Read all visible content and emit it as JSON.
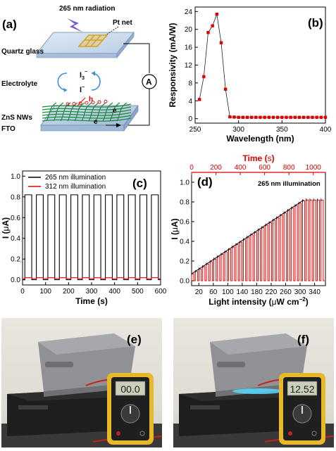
{
  "panel_a": {
    "label": "(a)",
    "radiation": "265 nm radiation",
    "pt_net": "Pt net",
    "quartz": "Quartz glass",
    "electrolyte": "Electrolyte",
    "i3": "I",
    "i3_sub": "3",
    "i3_sup": "−",
    "iminus": "I",
    "iminus_sup": "−",
    "hole": "h",
    "electron": "e",
    "nws": "ZnS NWs",
    "fto": "FTO",
    "meter": "A",
    "ebottom": "e"
  },
  "panel_e": {
    "label": "(e)",
    "display": "00.0"
  },
  "panel_f": {
    "label": "(f)",
    "display": "12.52"
  },
  "chart_data": [
    {
      "id": "b",
      "label": "(b)",
      "type": "scatter",
      "xlabel": "Wavelength (nm)",
      "ylabel": "Responsivity (mA/W)",
      "xlim": [
        250,
        400
      ],
      "ylim": [
        -1,
        25
      ],
      "xticks": [
        250,
        300,
        350,
        400
      ],
      "yticks": [
        0,
        4,
        8,
        12,
        16,
        20,
        24
      ],
      "x": [
        255,
        260,
        265,
        270,
        275,
        280,
        285,
        290,
        295,
        300,
        305,
        310,
        315,
        320,
        325,
        330,
        335,
        340,
        345,
        350,
        355,
        360,
        365,
        370,
        375,
        380,
        385,
        390,
        395,
        400
      ],
      "y": [
        4.3,
        9.4,
        19.3,
        20.8,
        23.4,
        17.0,
        6.6,
        0.4,
        0.35,
        0.3,
        0.3,
        0.3,
        0.3,
        0.3,
        0.3,
        0.3,
        0.3,
        0.3,
        0.3,
        0.3,
        0.3,
        0.3,
        0.3,
        0.3,
        0.3,
        0.3,
        0.3,
        0.3,
        0.3,
        0.3
      ]
    },
    {
      "id": "c",
      "label": "(c)",
      "type": "line",
      "xlabel": "Time (s)",
      "ylabel_base": "I (",
      "ylabel_mu": "μ",
      "ylabel_end": "A)",
      "xlim": [
        0,
        600
      ],
      "ylim": [
        -0.05,
        1.05
      ],
      "xticks": [
        0,
        100,
        200,
        300,
        400,
        500,
        600
      ],
      "yticks": [
        0.0,
        0.2,
        0.4,
        0.6,
        0.8,
        1.0
      ],
      "legend_position": "top-left",
      "series": [
        {
          "name": "265 nm illumination",
          "color": "#000000",
          "on_value": 0.82,
          "off_value": 0.0,
          "period": 50,
          "on_duration": 30,
          "start": 10,
          "end": 590
        },
        {
          "name": "312 nm illumination",
          "color": "#e00000",
          "on_value": 0.02,
          "off_value": 0.01,
          "period": 50,
          "on_duration": 30,
          "start": 10,
          "end": 590
        }
      ]
    },
    {
      "id": "d",
      "label": "(d)",
      "type": "line",
      "annotation": "265 nm illumination",
      "xlabel_base": "Light intensity (",
      "xlabel_mu": "μ",
      "xlabel_unit": "W cm",
      "xlabel_sup": "−2",
      "xlabel_end": ")",
      "x2label_base": "Time (",
      "x2label_s": "s",
      "x2label_end": ")",
      "ylabel_base": "I (",
      "ylabel_mu": "μ",
      "ylabel_end": "A)",
      "xlim": [
        0,
        370
      ],
      "x2lim": [
        0,
        1100
      ],
      "ylim": [
        -0.05,
        1.1
      ],
      "xticks": [
        20,
        60,
        100,
        140,
        180,
        220,
        260,
        300,
        340
      ],
      "x2ticks": [
        0,
        200,
        400,
        600,
        800,
        1000
      ],
      "yticks": [
        0.0,
        0.2,
        0.4,
        0.6,
        0.8,
        1.0
      ],
      "trend": {
        "x_start": 0,
        "y_start": 0.07,
        "x_end": 310,
        "y_end": 0.82,
        "saturation_y": 0.82,
        "x_max": 368
      },
      "pulse_count": 36,
      "color": "#e00000",
      "trend_color": "#000000",
      "x2_color": "#e00000"
    }
  ]
}
